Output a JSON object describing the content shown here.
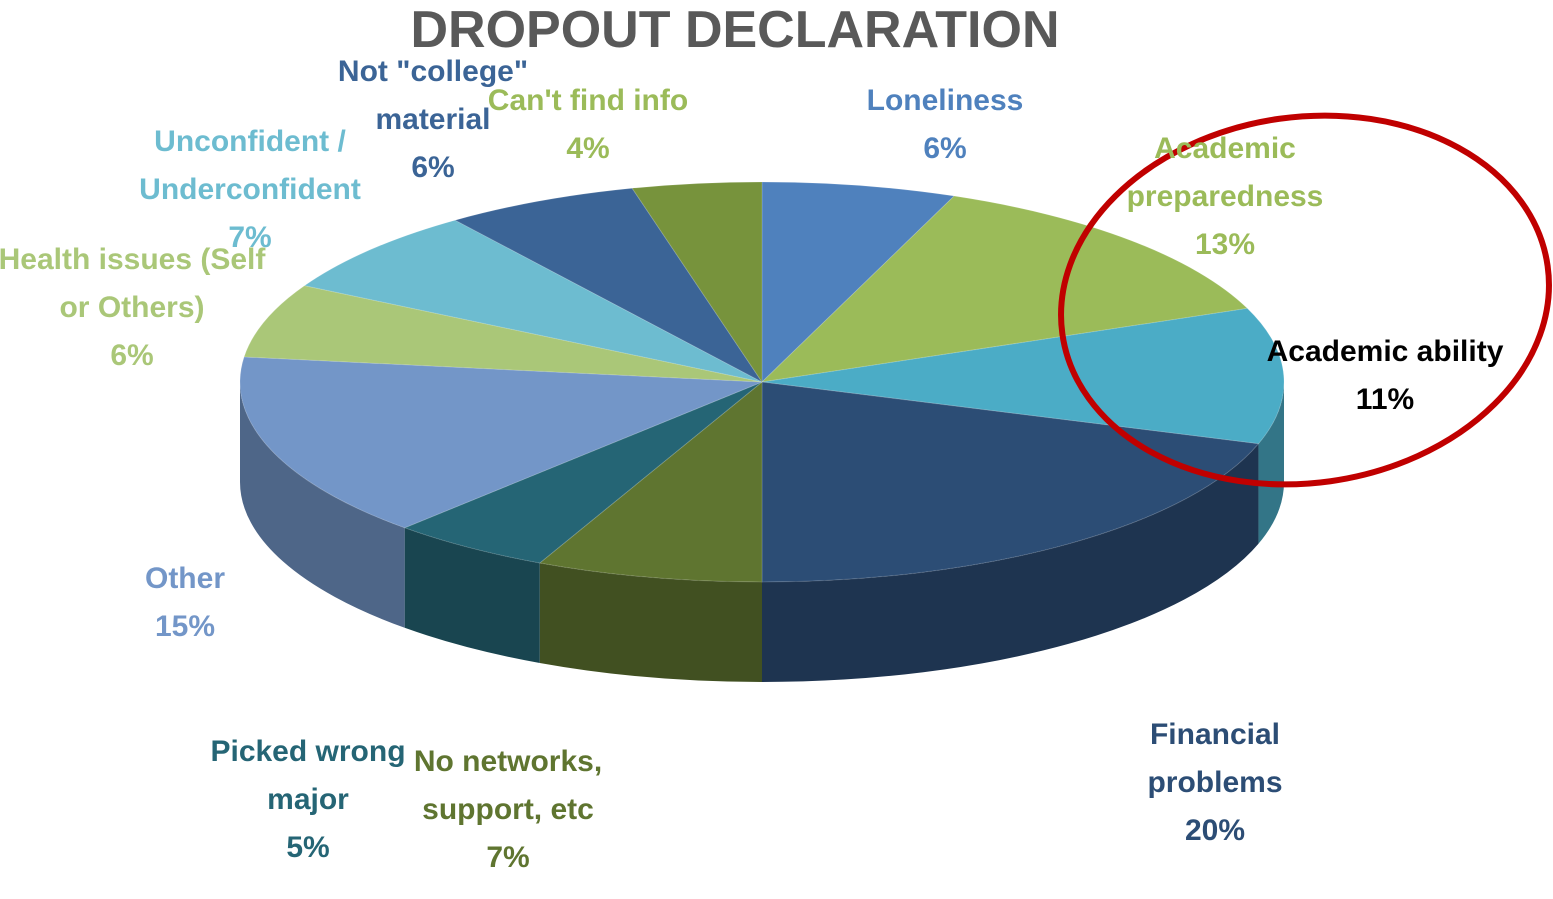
{
  "chart_data": {
    "type": "pie",
    "title": "DROPOUT DECLARATION",
    "categories": [
      "Loneliness",
      "Academic preparedness",
      "Academic ability",
      "Financial problems",
      "No networks, support, etc",
      "Picked wrong major",
      "Other",
      "Health issues (Self or Others)",
      "Unconfident / Underconfident",
      "Not \"college\" material",
      "Can't find info"
    ],
    "values": [
      6,
      13,
      11,
      20,
      7,
      5,
      15,
      6,
      7,
      6,
      4
    ],
    "value_labels": [
      "6%",
      "13%",
      "11%",
      "20%",
      "7%",
      "5%",
      "15%",
      "6%",
      "7%",
      "6%",
      "4%"
    ],
    "colors": [
      "#4f81bd",
      "#9bbb59",
      "#4bacc6",
      "#2c4d75",
      "#5f7530",
      "#256575",
      "#7396c8",
      "#aac778",
      "#6dbcd0",
      "#3b6496",
      "#77933c"
    ],
    "label_colors": [
      "#4f81bd",
      "#9bbb59",
      "#000000",
      "#2c4d75",
      "#5f7530",
      "#256575",
      "#7396c8",
      "#aac778",
      "#6dbcd0",
      "#3b6496",
      "#9bbb59"
    ]
  }
}
